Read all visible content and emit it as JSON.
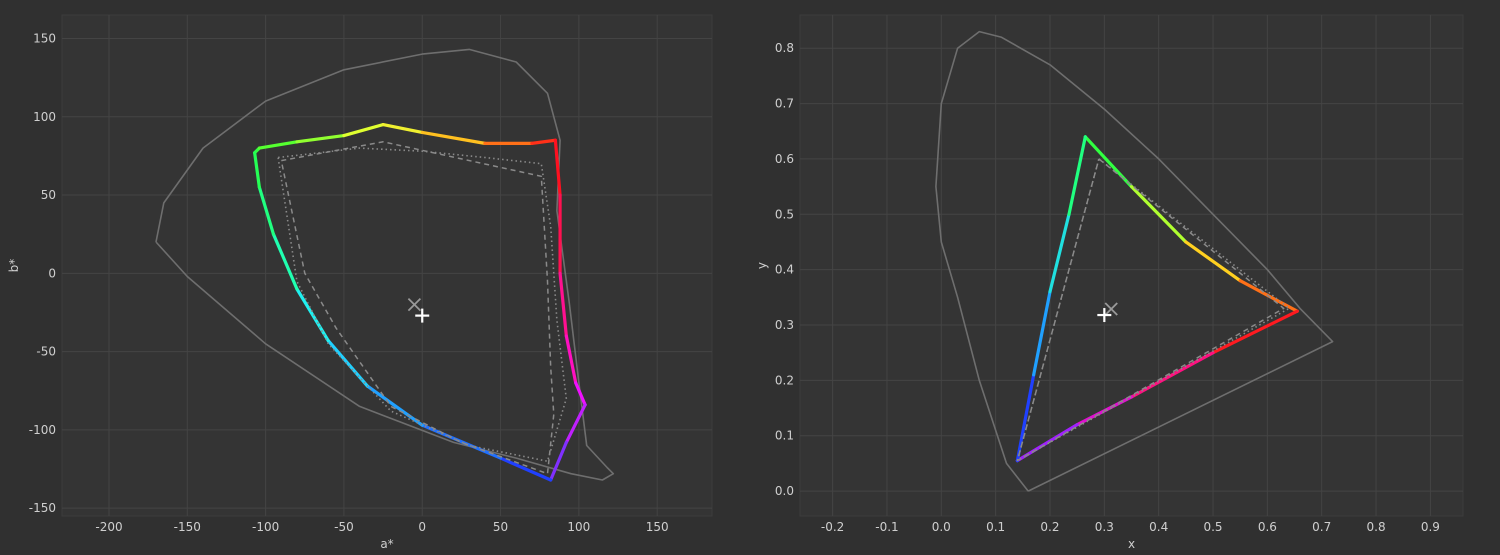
{
  "chart_data": [
    {
      "type": "line",
      "title": "",
      "xlabel": "a*",
      "ylabel": "b*",
      "xlim": [
        -230,
        185
      ],
      "ylim": [
        -155,
        165
      ],
      "xticks": [
        -200,
        -150,
        -100,
        -50,
        0,
        50,
        100,
        150
      ],
      "yticks": [
        -150,
        -100,
        -50,
        0,
        50,
        100,
        150
      ],
      "grid": true,
      "series": [
        {
          "style": "solid-gray",
          "points": [
            [
              -170,
              20
            ],
            [
              -165,
              45
            ],
            [
              -140,
              80
            ],
            [
              -100,
              110
            ],
            [
              -50,
              130
            ],
            [
              0,
              140
            ],
            [
              30,
              143
            ],
            [
              60,
              135
            ],
            [
              80,
              115
            ],
            [
              88,
              85
            ],
            [
              86,
              40
            ],
            [
              94,
              -20
            ],
            [
              100,
              -70
            ],
            [
              105,
              -110
            ],
            [
              118,
              -124
            ],
            [
              122,
              -128
            ],
            [
              115,
              -132
            ],
            [
              95,
              -128
            ],
            [
              60,
              -118
            ],
            [
              20,
              -108
            ],
            [
              -40,
              -85
            ],
            [
              -100,
              -45
            ],
            [
              -150,
              -2
            ],
            [
              -170,
              20
            ]
          ]
        },
        {
          "style": "gamut-colored",
          "points": [
            [
              -107,
              77
            ],
            [
              -104,
              80
            ],
            [
              -80,
              84
            ],
            [
              -50,
              88
            ],
            [
              -25,
              95
            ],
            [
              0,
              90
            ],
            [
              40,
              83
            ],
            [
              70,
              83
            ],
            [
              85,
              85
            ],
            [
              88,
              50
            ],
            [
              88,
              0
            ],
            [
              92,
              -40
            ],
            [
              98,
              -70
            ],
            [
              104,
              -84
            ],
            [
              92,
              -108
            ],
            [
              82,
              -132
            ],
            [
              50,
              -118
            ],
            [
              0,
              -97
            ],
            [
              -35,
              -72
            ],
            [
              -60,
              -43
            ],
            [
              -80,
              -10
            ],
            [
              -95,
              25
            ],
            [
              -104,
              55
            ],
            [
              -107,
              77
            ]
          ],
          "colors": [
            "#30ff40",
            "#55ff30",
            "#90ff30",
            "#e0ff30",
            "#f0f030",
            "#ffc020",
            "#ff7018",
            "#ff3018",
            "#ff1020",
            "#ff1050",
            "#ff1090",
            "#ff10c0",
            "#f010ff",
            "#c020ff",
            "#8030ff",
            "#2040ff",
            "#2070ff",
            "#20a0ff",
            "#20d0ff",
            "#20f0f0",
            "#20ffb0",
            "#20ff80",
            "#25ff55",
            "#30ff40"
          ]
        },
        {
          "style": "dashed-gray",
          "points": [
            [
              -90,
              72
            ],
            [
              -25,
              84
            ],
            [
              76,
              62
            ],
            [
              80,
              -5
            ],
            [
              82,
              -60
            ],
            [
              84,
              -90
            ],
            [
              80,
              -128
            ],
            [
              25,
              -108
            ],
            [
              -20,
              -85
            ],
            [
              -55,
              -35
            ],
            [
              -75,
              0
            ],
            [
              -90,
              72
            ]
          ]
        },
        {
          "style": "dotted-gray",
          "points": [
            [
              -92,
              74
            ],
            [
              -40,
              80
            ],
            [
              0,
              78
            ],
            [
              40,
              74
            ],
            [
              76,
              70
            ],
            [
              82,
              30
            ],
            [
              86,
              -30
            ],
            [
              92,
              -80
            ],
            [
              80,
              -120
            ],
            [
              30,
              -110
            ],
            [
              -20,
              -88
            ],
            [
              -60,
              -45
            ],
            [
              -80,
              -5
            ],
            [
              -92,
              74
            ]
          ]
        }
      ],
      "markers": [
        {
          "shape": "x",
          "x": -5,
          "y": -20,
          "color": "#999999"
        },
        {
          "shape": "plus",
          "x": 0,
          "y": -27,
          "color": "#ffffff"
        }
      ]
    },
    {
      "type": "line",
      "title": "",
      "xlabel": "x",
      "ylabel": "y",
      "xlim": [
        -0.26,
        0.96
      ],
      "ylim": [
        -0.045,
        0.86
      ],
      "xticks": [
        -0.2,
        -0.1,
        0.0,
        0.1,
        0.2,
        0.3,
        0.4,
        0.5,
        0.6,
        0.7,
        0.8,
        0.9
      ],
      "yticks": [
        0.0,
        0.1,
        0.2,
        0.3,
        0.4,
        0.5,
        0.6,
        0.7,
        0.8
      ],
      "grid": true,
      "series": [
        {
          "style": "solid-gray",
          "points": [
            [
              0.16,
              0.0
            ],
            [
              0.12,
              0.05
            ],
            [
              0.07,
              0.2
            ],
            [
              0.03,
              0.35
            ],
            [
              0.0,
              0.45
            ],
            [
              -0.01,
              0.55
            ],
            [
              0.0,
              0.7
            ],
            [
              0.03,
              0.8
            ],
            [
              0.07,
              0.83
            ],
            [
              0.11,
              0.82
            ],
            [
              0.2,
              0.77
            ],
            [
              0.3,
              0.69
            ],
            [
              0.4,
              0.6
            ],
            [
              0.5,
              0.5
            ],
            [
              0.6,
              0.4
            ],
            [
              0.66,
              0.33
            ],
            [
              0.72,
              0.27
            ],
            [
              0.16,
              0.0
            ]
          ]
        },
        {
          "style": "gamut-colored",
          "points": [
            [
              0.265,
              0.64
            ],
            [
              0.35,
              0.55
            ],
            [
              0.45,
              0.45
            ],
            [
              0.55,
              0.38
            ],
            [
              0.655,
              0.325
            ],
            [
              0.5,
              0.25
            ],
            [
              0.35,
              0.17
            ],
            [
              0.25,
              0.12
            ],
            [
              0.14,
              0.055
            ],
            [
              0.17,
              0.21
            ],
            [
              0.2,
              0.36
            ],
            [
              0.235,
              0.5
            ],
            [
              0.265,
              0.64
            ]
          ],
          "colors": [
            "#30ff40",
            "#b0ff30",
            "#ffd020",
            "#ff7018",
            "#ff1a20",
            "#ff1080",
            "#e010d0",
            "#a020ff",
            "#2040ff",
            "#20a0ff",
            "#20e0e0",
            "#20ff80",
            "#30ff40"
          ]
        },
        {
          "style": "dashed-gray",
          "points": [
            [
              0.29,
              0.6
            ],
            [
              0.63,
              0.33
            ],
            [
              0.14,
              0.055
            ],
            [
              0.29,
              0.6
            ]
          ]
        },
        {
          "style": "dotted-gray",
          "points": [
            [
              0.29,
              0.6
            ],
            [
              0.64,
              0.33
            ],
            [
              0.14,
              0.055
            ],
            [
              0.29,
              0.6
            ]
          ]
        }
      ],
      "markers": [
        {
          "shape": "x",
          "x": 0.3127,
          "y": 0.329,
          "color": "#999999"
        },
        {
          "shape": "plus",
          "x": 0.3,
          "y": 0.318,
          "color": "#ffffff"
        }
      ]
    }
  ]
}
